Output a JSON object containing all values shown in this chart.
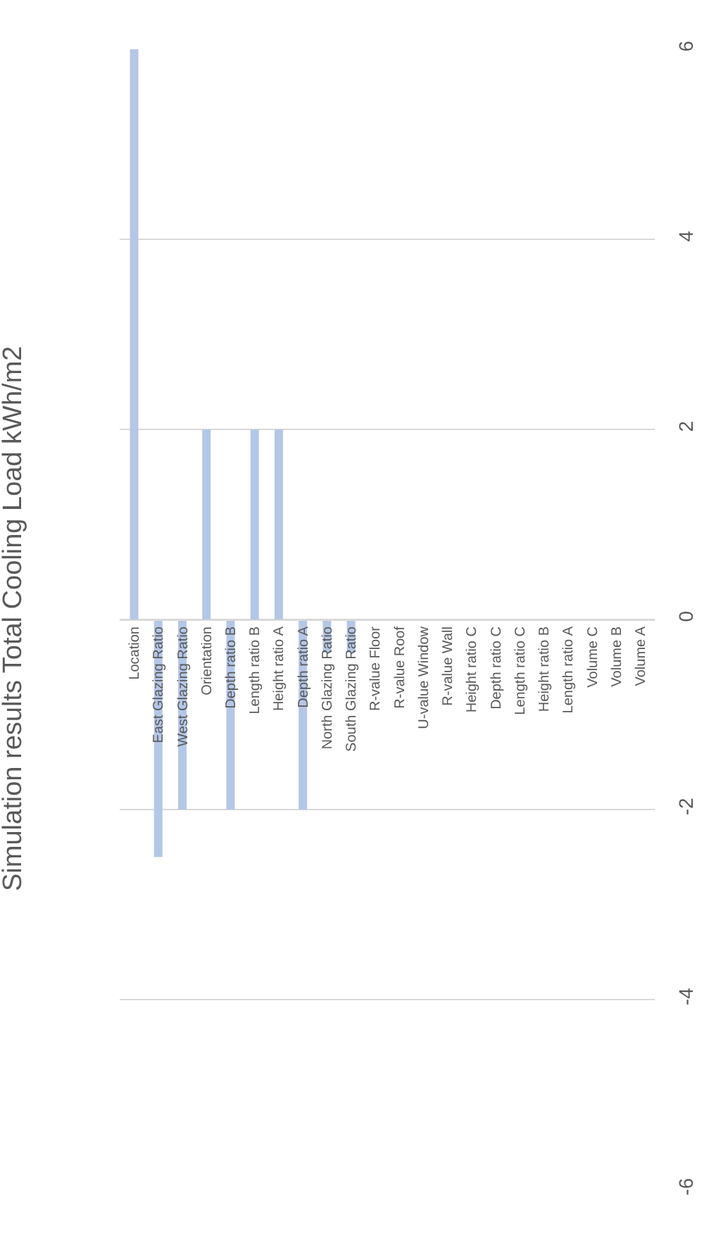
{
  "chart_data": {
    "type": "bar",
    "title": "Simulation results Total Cooling Load kWh/m2",
    "categories": [
      "Location",
      "East Glazing Ratio",
      "West Glazing Ratio",
      "Orientation",
      "Depth ratio B",
      "Length ratio B",
      "Height ratio A",
      "Depth ratio A",
      "North Glazing Ratio",
      "South Glazing Ratio",
      "R-value Floor",
      "R-value Roof",
      "U-value Window",
      "R-value Wall",
      "Height ratio C",
      "Depth ratio C",
      "Length ratio C",
      "Height ratio B",
      "Length ratio A",
      "Volume C",
      "Volume B",
      "Volume A"
    ],
    "values": [
      6,
      -2.5,
      -2,
      2,
      -2,
      2,
      2,
      -2,
      -0.35,
      -0.35,
      0,
      0,
      0,
      0,
      0,
      0,
      0,
      0,
      0,
      0,
      0,
      0
    ],
    "color": "#b4c7e7",
    "ylim": [
      -6,
      6
    ],
    "yticks": [
      -6,
      -4,
      -2,
      0,
      2,
      4,
      6
    ],
    "grid": "y"
  }
}
